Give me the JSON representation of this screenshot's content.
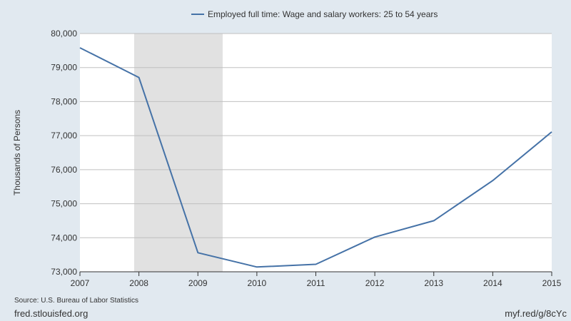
{
  "legend": {
    "series_label": "Employed full time: Wage and salary workers: 25 to 54 years"
  },
  "footer": {
    "source": "Source: U.S. Bureau of Labor Statistics",
    "site": "fred.stlouisfed.org",
    "short_url": "myf.red/g/8cYc"
  },
  "colors": {
    "background": "#e1e9f0",
    "plot_background": "#ffffff",
    "series_line": "#4572a7",
    "recession_shade": "#e1e1e1",
    "gridline": "#c0c0c0"
  },
  "chart_data": {
    "type": "line",
    "title": "",
    "xlabel": "",
    "ylabel": "Thousands of Persons",
    "xlim": [
      2007,
      2015
    ],
    "ylim": [
      73000,
      80000
    ],
    "x_ticks": [
      2007,
      2008,
      2009,
      2010,
      2011,
      2012,
      2013,
      2014,
      2015
    ],
    "y_ticks": [
      73000,
      74000,
      75000,
      76000,
      77000,
      78000,
      79000,
      80000
    ],
    "y_tick_labels": [
      "73,000",
      "74,000",
      "75,000",
      "76,000",
      "77,000",
      "78,000",
      "79,000",
      "80,000"
    ],
    "grid": "horizontal",
    "legend_position": "top-center",
    "recession_shading": [
      {
        "start": 2007.92,
        "end": 2009.42
      }
    ],
    "series": [
      {
        "name": "Employed full time: Wage and salary workers: 25 to 54 years",
        "x": [
          2007,
          2008,
          2009,
          2010,
          2011,
          2012,
          2013,
          2014,
          2015
        ],
        "values": [
          79580,
          78710,
          73560,
          73140,
          73220,
          74020,
          74500,
          75680,
          77110
        ]
      }
    ]
  }
}
